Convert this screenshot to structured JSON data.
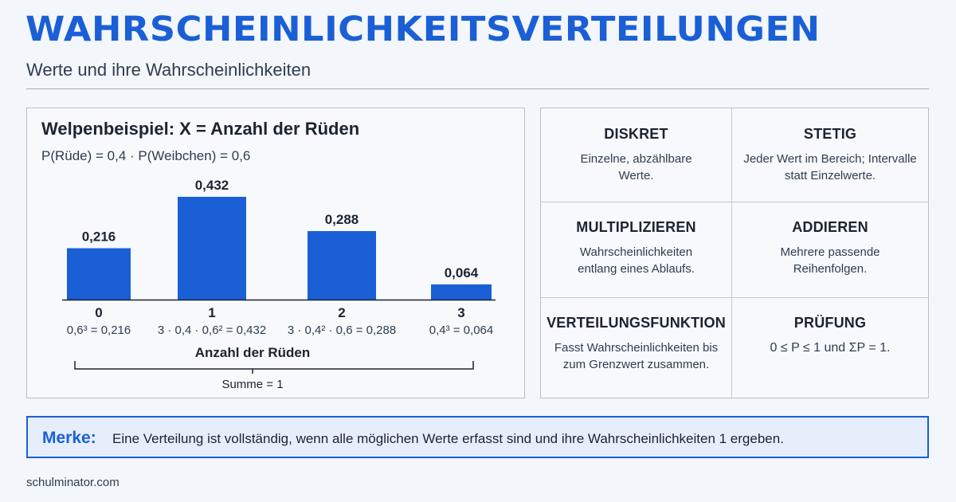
{
  "header": {
    "title": "WAHRSCHEINLICHKEITSVERTEILUNGEN",
    "subtitle": "Werte und ihre Wahrscheinlichkeiten"
  },
  "chart_data": {
    "type": "bar",
    "title": "Welpenbeispiel: X = Anzahl der Rüden",
    "subtitle": "P(Rüde) = 0,4 · P(Weibchen) = 0,6",
    "categories": [
      "0",
      "1",
      "2",
      "3"
    ],
    "values": [
      0.216,
      0.432,
      0.288,
      0.064
    ],
    "value_labels": [
      "0,216",
      "0,432",
      "0,288",
      "0,064"
    ],
    "formulas": [
      "0,6³ = 0,216",
      "3 · 0,4 · 0,6² = 0,432",
      "3 · 0,4² · 0,6 = 0,288",
      "0,4³ = 0,064"
    ],
    "xlabel": "Anzahl der Rüden",
    "ylabel": "",
    "ylim": [
      0,
      0.432
    ],
    "grid": false,
    "bracket_label": "Summe = 1",
    "bar_color": "#1a5fd6"
  },
  "cards": [
    {
      "heading": "DISKRET",
      "text": "Einzelne, abzählbare Werte."
    },
    {
      "heading": "STETIG",
      "text": "Jeder Wert im Bereich; Intervalle statt Einzelwerte."
    },
    {
      "heading": "MULTIPLIZIEREN",
      "text": "Wahrscheinlichkeiten entlang eines Ablaufs."
    },
    {
      "heading": "ADDIEREN",
      "text": "Mehrere passende Reihenfolgen."
    },
    {
      "heading": "VERTEILUNGSFUNKTION",
      "text": "Fasst Wahrscheinlichkeiten bis zum Grenzwert zusammen."
    },
    {
      "heading": "PRÜFUNG",
      "text": "0 ≤ P ≤ 1 und ΣP = 1."
    }
  ],
  "merke": {
    "label": "Merke:",
    "text": "Eine Verteilung ist vollständig, wenn alle möglichen Werte erfasst sind und ihre Wahrscheinlichkeiten 1 ergeben."
  },
  "footer": {
    "text": "schulminator.com"
  },
  "colors": {
    "accent": "#1a5fd6",
    "background": "#f3f6fa"
  }
}
